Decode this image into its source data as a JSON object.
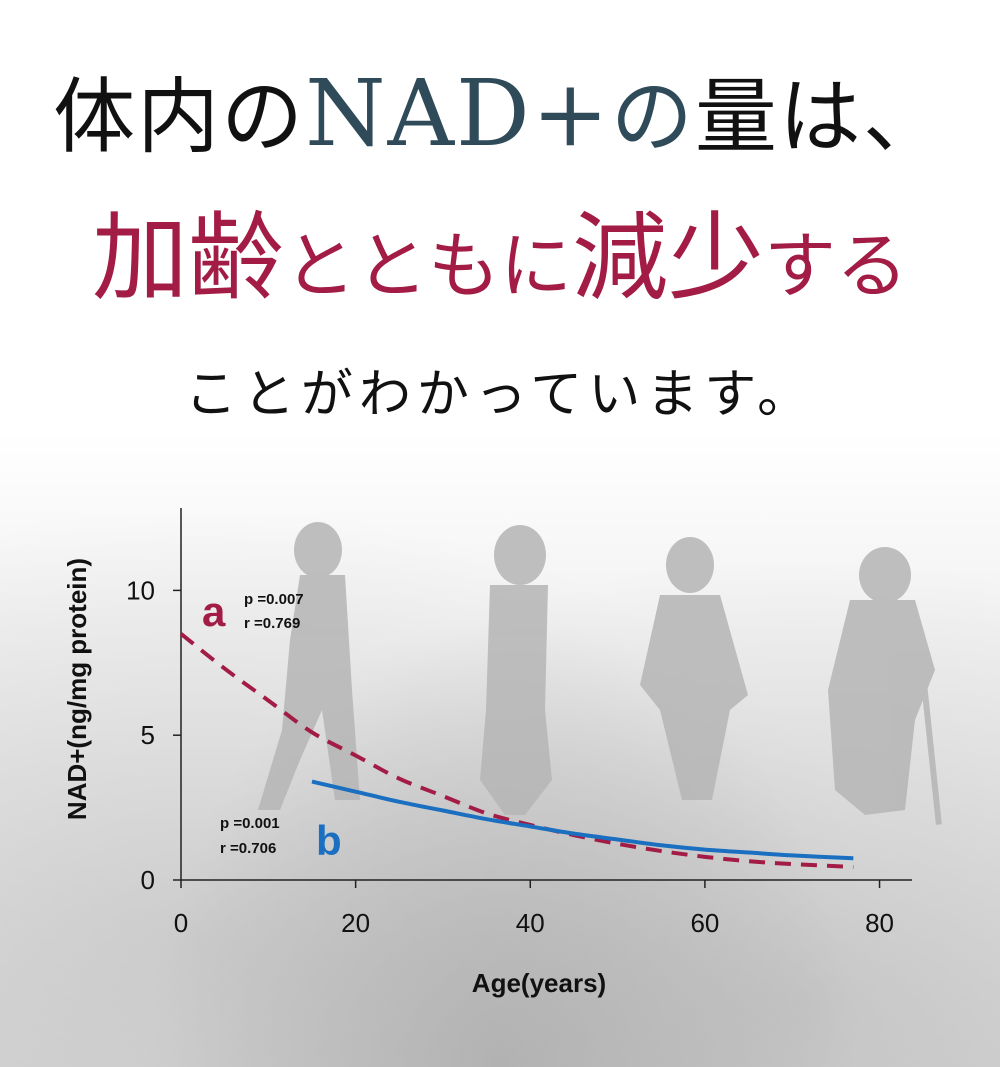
{
  "headline": {
    "line1_prefix": "体内の",
    "line1_nad": "NAD+",
    "line1_no": "の",
    "line1_suffix": "量は、",
    "line2_a": "加齢",
    "line2_b": "とともに",
    "line2_c": "減少",
    "line2_d": "する",
    "line3": "ことがわかっています。"
  },
  "colors": {
    "title_dark": "#111111",
    "nad_teal": "#2f4b5a",
    "accent_crimson": "#a21c45",
    "series_b_blue": "#1a6fc0",
    "silhouette": "#b5b5b5"
  },
  "chart_data": {
    "type": "line",
    "xlabel": "Age(years)",
    "ylabel": "NAD+(ng/mg protein)",
    "xlim": [
      0,
      82
    ],
    "ylim": [
      0,
      12.5
    ],
    "xticks": [
      0,
      20,
      40,
      60,
      80
    ],
    "yticks": [
      0,
      5,
      10
    ],
    "grid": false,
    "series": [
      {
        "name": "a",
        "style": "dashed",
        "color": "#a21c45",
        "stats": [
          "p =0.007",
          "r =0.769"
        ],
        "x": [
          0,
          5,
          10,
          15,
          20,
          25,
          30,
          35,
          40,
          45,
          50,
          55,
          60,
          65,
          70,
          77
        ],
        "y": [
          8.5,
          7.3,
          6.2,
          5.1,
          4.3,
          3.5,
          2.9,
          2.3,
          1.9,
          1.55,
          1.25,
          1.0,
          0.8,
          0.65,
          0.55,
          0.45
        ]
      },
      {
        "name": "b",
        "style": "solid",
        "color": "#1a6fc0",
        "stats": [
          "p =0.001",
          "r =0.706"
        ],
        "x": [
          15,
          20,
          25,
          30,
          35,
          40,
          45,
          50,
          55,
          60,
          65,
          70,
          77
        ],
        "y": [
          3.4,
          3.05,
          2.7,
          2.4,
          2.1,
          1.85,
          1.6,
          1.4,
          1.2,
          1.05,
          0.95,
          0.85,
          0.75
        ]
      }
    ]
  }
}
